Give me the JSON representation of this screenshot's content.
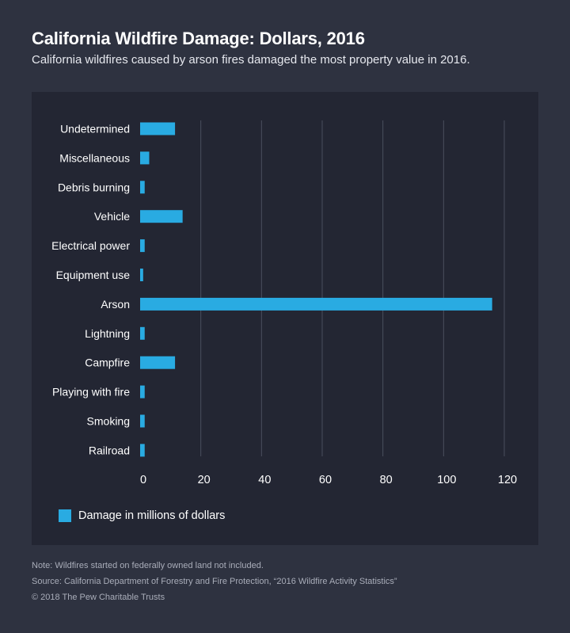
{
  "header": {
    "title": "California Wildfire Damage: Dollars, 2016",
    "subtitle": "California wildfires caused by arson fires damaged the most property value in 2016."
  },
  "colors": {
    "bar": "#29abe2",
    "grid": "#4a4f5e",
    "background": "#2e3240",
    "panel": "#232633"
  },
  "chart_data": {
    "type": "bar",
    "orientation": "horizontal",
    "categories": [
      "Undetermined",
      "Miscellaneous",
      "Debris burning",
      "Vehicle",
      "Electrical power",
      "Equipment use",
      "Arson",
      "Lightning",
      "Campfire",
      "Playing with fire",
      "Smoking",
      "Railroad"
    ],
    "series": [
      {
        "name": "Damage in millions of dollars",
        "values": [
          11.5,
          3,
          1.5,
          14,
          1.5,
          1,
          116,
          1.5,
          11.5,
          1.5,
          1.5,
          1.5
        ]
      }
    ],
    "xlim": [
      0,
      120
    ],
    "xticks": [
      0,
      20,
      40,
      60,
      80,
      100,
      120
    ],
    "grid": true,
    "legend_placement": "bottom-left"
  },
  "footer": {
    "note": "Note: Wildfires started on federally owned land not included.",
    "source": "Source: California Department of Forestry and Fire Protection, “2016 Wildfire Activity Statistics”",
    "copyright": "© 2018 The Pew Charitable Trusts"
  }
}
